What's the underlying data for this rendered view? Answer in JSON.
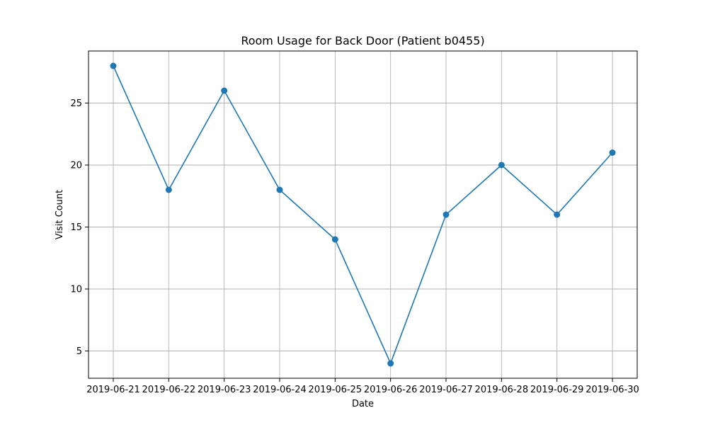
{
  "chart_data": {
    "type": "line",
    "title": "Room Usage for Back Door (Patient b0455)",
    "xlabel": "Date",
    "ylabel": "Visit Count",
    "x": [
      "2019-06-21",
      "2019-06-22",
      "2019-06-23",
      "2019-06-24",
      "2019-06-25",
      "2019-06-26",
      "2019-06-27",
      "2019-06-28",
      "2019-06-29",
      "2019-06-30"
    ],
    "series": [
      {
        "values": [
          28,
          18,
          26,
          18,
          14,
          4,
          16,
          20,
          16,
          21
        ]
      }
    ],
    "ylim": [
      2.8,
      29.2
    ],
    "yticks": [
      5,
      10,
      15,
      20,
      25
    ],
    "grid": true,
    "line_color": "#1f77b4",
    "grid_color": "#b0b0b0"
  }
}
